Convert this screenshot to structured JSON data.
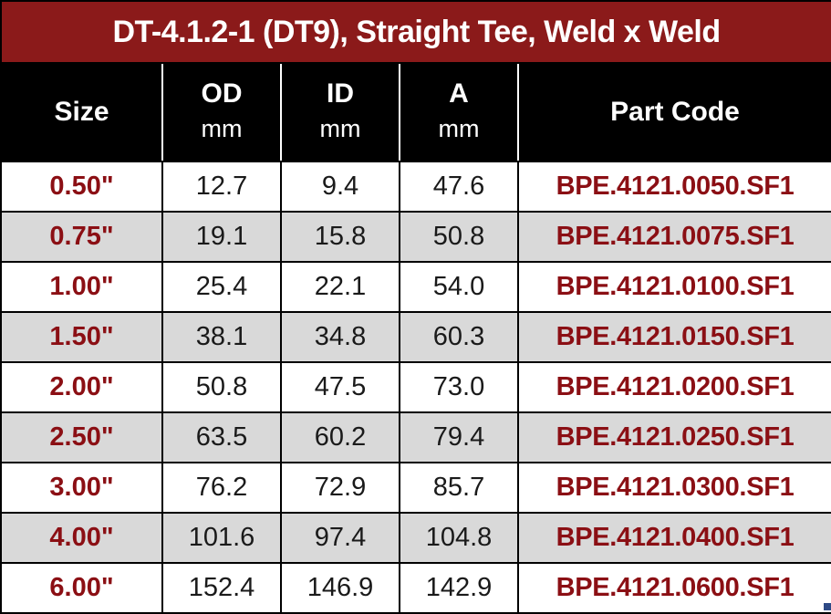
{
  "title": "DT-4.1.2-1 (DT9), Straight Tee, Weld x Weld",
  "columns": [
    {
      "label": "Size",
      "unit": ""
    },
    {
      "label": "OD",
      "unit": "mm"
    },
    {
      "label": "ID",
      "unit": "mm"
    },
    {
      "label": "A",
      "unit": "mm"
    },
    {
      "label": "Part Code",
      "unit": ""
    }
  ],
  "rows": [
    {
      "size": "0.50\"",
      "od": "12.7",
      "id": "9.4",
      "a": "47.6",
      "code": "BPE.4121.0050.SF1"
    },
    {
      "size": "0.75\"",
      "od": "19.1",
      "id": "15.8",
      "a": "50.8",
      "code": "BPE.4121.0075.SF1"
    },
    {
      "size": "1.00\"",
      "od": "25.4",
      "id": "22.1",
      "a": "54.0",
      "code": "BPE.4121.0100.SF1"
    },
    {
      "size": "1.50\"",
      "od": "38.1",
      "id": "34.8",
      "a": "60.3",
      "code": "BPE.4121.0150.SF1"
    },
    {
      "size": "2.00\"",
      "od": "50.8",
      "id": "47.5",
      "a": "73.0",
      "code": "BPE.4121.0200.SF1"
    },
    {
      "size": "2.50\"",
      "od": "63.5",
      "id": "60.2",
      "a": "79.4",
      "code": "BPE.4121.0250.SF1"
    },
    {
      "size": "3.00\"",
      "od": "76.2",
      "id": "72.9",
      "a": "85.7",
      "code": "BPE.4121.0300.SF1"
    },
    {
      "size": "4.00\"",
      "od": "101.6",
      "id": "97.4",
      "a": "104.8",
      "code": "BPE.4121.0400.SF1"
    },
    {
      "size": "6.00\"",
      "od": "152.4",
      "id": "146.9",
      "a": "142.9",
      "code": "BPE.4121.0600.SF1"
    }
  ],
  "colors": {
    "title_bg": "#8b1a1a",
    "header_bg": "#000000",
    "accent_text": "#8b0f14",
    "shade_row": "#d9d9d9"
  }
}
